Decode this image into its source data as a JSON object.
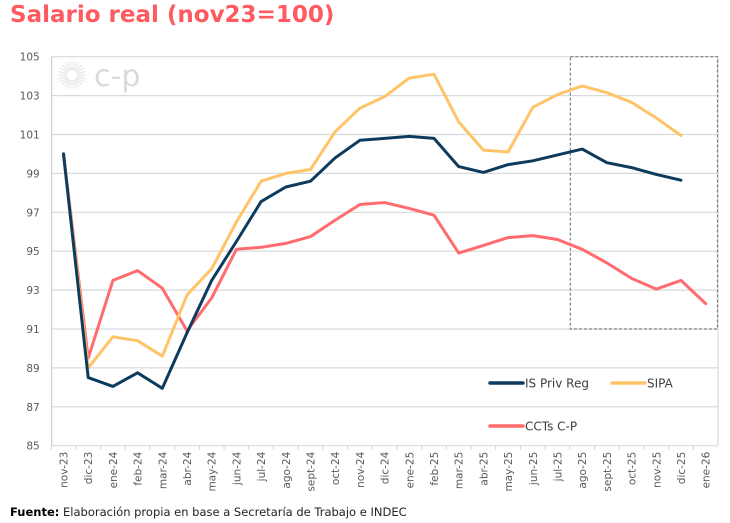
{
  "chart_data": {
    "type": "line",
    "title": "Salario real (nov23=100)",
    "xlabel": "",
    "ylabel": "",
    "ylim": [
      85,
      105
    ],
    "yticks": [
      85,
      87,
      89,
      91,
      93,
      95,
      97,
      99,
      101,
      103,
      105
    ],
    "grid": "horizontal",
    "legend_position": "bottom-right",
    "categories": [
      "nov-23",
      "dic-23",
      "ene-24",
      "feb-24",
      "mar-24",
      "abr-24",
      "may-24",
      "jun-24",
      "jul-24",
      "ago-24",
      "sept-24",
      "oct-24",
      "nov-24",
      "dic-24",
      "ene-25",
      "feb-25",
      "mar-25",
      "abr-25",
      "may-25",
      "jun-25",
      "jul-25",
      "ago-25",
      "sept-25",
      "oct-25",
      "nov-25",
      "dic-25",
      "ene-26"
    ],
    "series": [
      {
        "name": "IS Priv Reg",
        "color": "#0d3b5e",
        "values": [
          100,
          88.5,
          88.05,
          88.75,
          87.95,
          90.8,
          93.5,
          95.5,
          97.55,
          98.3,
          98.6,
          99.8,
          100.7,
          100.8,
          100.9,
          100.8,
          99.35,
          99.05,
          99.45,
          99.65,
          99.95,
          100.25,
          99.55,
          99.3,
          98.95,
          98.65,
          null
        ]
      },
      {
        "name": "SIPA",
        "color": "#ffc468",
        "values": [
          100,
          89.0,
          90.6,
          90.4,
          89.6,
          92.75,
          94.1,
          96.5,
          98.6,
          99.0,
          99.2,
          101.15,
          102.35,
          102.95,
          103.9,
          104.1,
          101.65,
          100.2,
          100.1,
          102.4,
          103.05,
          103.5,
          103.15,
          102.65,
          101.85,
          100.95,
          null
        ]
      },
      {
        "name": "CCTs C-P",
        "color": "#ff6b6e",
        "values": [
          100,
          89.5,
          93.5,
          94.0,
          93.1,
          90.9,
          92.6,
          95.1,
          95.2,
          95.4,
          95.75,
          96.6,
          97.4,
          97.5,
          97.2,
          96.85,
          94.9,
          95.3,
          95.7,
          95.8,
          95.6,
          95.1,
          94.4,
          93.6,
          93.05,
          93.5,
          92.3
        ]
      }
    ],
    "highlight_box": {
      "x_from": "ago-25",
      "x_to": "ene-26",
      "y_from": 91,
      "y_to": 105,
      "style": "dashed"
    }
  },
  "logo": "c-p",
  "footer": {
    "label": "Fuente:",
    "text": " Elaboración propia en base a Secretaría de Trabajo e INDEC"
  }
}
